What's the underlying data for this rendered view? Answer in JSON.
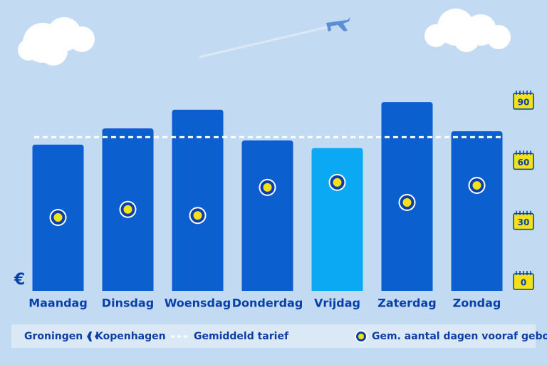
{
  "chart_data": {
    "type": "bar",
    "ylabel": "€",
    "categories": [
      "Maandag",
      "Dinsdag",
      "Woensdag",
      "Donderdag",
      "Vrijdag",
      "Zaterdag",
      "Zondag"
    ],
    "ylim": [
      0,
      100
    ],
    "y2lim": [
      0,
      90
    ],
    "y2ticks": [
      0,
      30,
      60,
      90
    ],
    "series": [
      {
        "values": [
          66.6,
          74,
          82.5,
          68.5,
          65,
          86,
          72.7
        ],
        "colors": [
          "#0b5fcf",
          "#0b5fcf",
          "#0b5fcf",
          "#0b5fcf",
          "#0ba8f4",
          "#0b5fcf",
          "#0b5fcf"
        ]
      },
      {
        "name": "Gem. aantal dagen vooraf geboekt",
        "axis": "y2",
        "color": "#f5e11a",
        "values": [
          32,
          36,
          33,
          47,
          49.5,
          39.5,
          48
        ]
      }
    ],
    "average": {
      "name": "Gemiddeld tarief",
      "value": 70
    },
    "route": {
      "origin": "Groningen",
      "destination": "Kopenhagen"
    }
  }
}
